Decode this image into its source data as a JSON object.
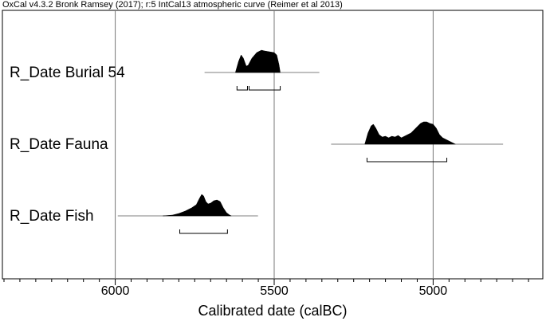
{
  "chart_data": {
    "type": "density",
    "title": "OxCal v4.3.2 Bronk Ramsey (2017); r:5 IntCal13 atmospheric curve (Reimer et al 2013)",
    "x_label": "Calibrated date (calBC)",
    "xlim": [
      6355,
      4655
    ],
    "xticks": [
      6000,
      5500,
      5000
    ],
    "xticks_minor": [
      6350,
      6300,
      6250,
      6200,
      6150,
      6100,
      6050,
      5950,
      5900,
      5850,
      5800,
      5750,
      5700,
      5650,
      5600,
      5550,
      5450,
      5400,
      5350,
      5300,
      5250,
      5200,
      5150,
      5100,
      5050,
      4950,
      4900,
      4850,
      4800,
      4750,
      4700
    ],
    "grid": true,
    "color": "#000000",
    "series": [
      {
        "name": "R_Date Burial 54",
        "span": [
          5719,
          5358
        ],
        "x": [
          5622,
          5612,
          5604,
          5597,
          5588,
          5582,
          5570,
          5555,
          5540,
          5530,
          5515,
          5500,
          5492,
          5485,
          5481
        ],
        "values": [
          0,
          14,
          22,
          18,
          8,
          9,
          18,
          25,
          28,
          27,
          26,
          25,
          22,
          10,
          0
        ],
        "ranges": [
          [
            5617,
            5584
          ],
          [
            5579,
            5481
          ]
        ]
      },
      {
        "name": "R_Date Fauna",
        "span": [
          5321,
          4780
        ],
        "x": [
          5215,
          5205,
          5195,
          5188,
          5180,
          5170,
          5160,
          5150,
          5140,
          5130,
          5120,
          5110,
          5100,
          5090,
          5080,
          5070,
          5060,
          5050,
          5040,
          5030,
          5020,
          5010,
          5000,
          4990,
          4980,
          4970,
          4960,
          4950,
          4940,
          4930
        ],
        "values": [
          0,
          14,
          23,
          25,
          20,
          12,
          9,
          10,
          8,
          10,
          9,
          11,
          8,
          10,
          12,
          14,
          18,
          22,
          26,
          28,
          28,
          26,
          25,
          20,
          12,
          8,
          6,
          4,
          2,
          0
        ],
        "ranges": [
          [
            5208,
            4957
          ]
        ]
      },
      {
        "name": "R_Date Fish",
        "span": [
          5992,
          5551
        ],
        "x": [
          5850,
          5820,
          5800,
          5780,
          5760,
          5745,
          5735,
          5728,
          5722,
          5715,
          5708,
          5700,
          5690,
          5680,
          5670,
          5660,
          5650,
          5640,
          5635
        ],
        "values": [
          0,
          1,
          3,
          6,
          10,
          14,
          22,
          27,
          25,
          18,
          15,
          16,
          19,
          20,
          18,
          10,
          4,
          1,
          0
        ],
        "ranges": [
          [
            5797,
            5647
          ]
        ]
      }
    ]
  }
}
